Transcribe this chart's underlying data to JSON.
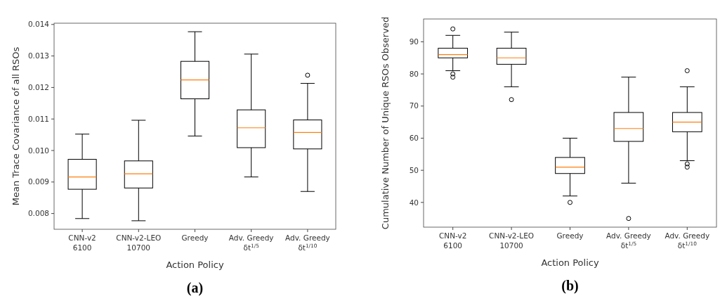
{
  "chart_data": [
    {
      "type": "box",
      "xlabel": "Action Policy",
      "ylabel": "Mean Trace Covariance of all RSOs",
      "annotations": [
        "(a)"
      ],
      "categories": [
        "CNN-v2\n6100",
        "CNN-v2-LEO\n10700",
        "Greedy",
        "Adv. Greedy\nδt$^{1/5}$",
        "Adv. Greedy\nδt$^{1/10}$"
      ],
      "ylim": [
        0.0075,
        0.01404
      ],
      "yticks": [
        {
          "value": 0.008,
          "label": "0.008"
        },
        {
          "value": 0.009,
          "label": "0.009"
        },
        {
          "value": 0.01,
          "label": "0.010"
        },
        {
          "value": 0.011,
          "label": "0.011"
        },
        {
          "value": 0.012,
          "label": "0.012"
        },
        {
          "value": 0.013,
          "label": "0.013"
        },
        {
          "value": 0.014,
          "label": "0.014"
        }
      ],
      "series": [
        {
          "color": "#000000",
          "boxes": [
            {
              "low": 0.00784,
              "q1": 0.00877,
              "median": 0.00916,
              "q3": 0.00972,
              "high": 0.01052
            },
            {
              "low": 0.00777,
              "q1": 0.00881,
              "median": 0.00926,
              "q3": 0.00967,
              "high": 0.01096
            },
            {
              "low": 0.01046,
              "q1": 0.01164,
              "median": 0.01224,
              "q3": 0.01283,
              "high": 0.01377
            },
            {
              "low": 0.00916,
              "q1": 0.01009,
              "median": 0.01072,
              "q3": 0.01129,
              "high": 0.01306
            },
            {
              "low": 0.0087,
              "q1": 0.01005,
              "median": 0.01057,
              "q3": 0.01097,
              "high": 0.01213,
              "outliers": [
                0.01239
              ]
            }
          ]
        }
      ]
    },
    {
      "type": "box",
      "xlabel": "Action Policy",
      "ylabel": "Cumulative Number of Unique RSOs Observed",
      "annotations": [
        "(b)"
      ],
      "categories": [
        "CNN-v2\n6100",
        "CNN-v2-LEO\n10700",
        "Greedy",
        "Adv. Greedy\nδt$^{1/5}$",
        "Adv. Greedy\nδt$^{1/10}$"
      ],
      "ylim": [
        32.3,
        97.1
      ],
      "yticks": [
        40,
        50,
        60,
        70,
        80,
        90
      ],
      "series": [
        {
          "color": "#000000",
          "boxes": [
            {
              "low": 81,
              "q1": 85,
              "median": 86,
              "q3": 88,
              "high": 92,
              "outliers": [
                94,
                80,
                79
              ]
            },
            {
              "low": 76,
              "q1": 83,
              "median": 85,
              "q3": 88,
              "high": 93,
              "outliers": [
                72
              ]
            },
            {
              "low": 42,
              "q1": 49,
              "median": 51,
              "q3": 54,
              "high": 60,
              "outliers": [
                40
              ]
            },
            {
              "low": 46,
              "q1": 59,
              "median": 63,
              "q3": 68,
              "high": 79,
              "outliers": [
                35
              ]
            },
            {
              "low": 53,
              "q1": 62,
              "median": 65,
              "q3": 68,
              "high": 76,
              "outliers": [
                81,
                52,
                51
              ]
            }
          ]
        }
      ]
    }
  ]
}
